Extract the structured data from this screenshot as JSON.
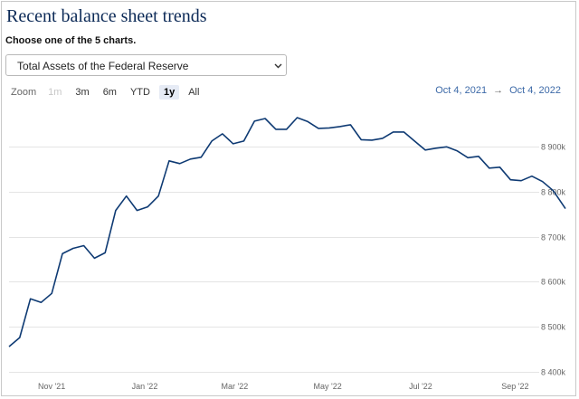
{
  "header": {
    "title": "Recent balance sheet trends",
    "subtitle": "Choose one of the 5 charts."
  },
  "selector": {
    "value": "Total Assets of the Federal Reserve"
  },
  "zoom": {
    "label": "Zoom",
    "buttons": [
      {
        "label": "1m",
        "state": "disabled"
      },
      {
        "label": "3m",
        "state": "normal"
      },
      {
        "label": "6m",
        "state": "normal"
      },
      {
        "label": "YTD",
        "state": "normal"
      },
      {
        "label": "1y",
        "state": "active"
      },
      {
        "label": "All",
        "state": "normal"
      }
    ]
  },
  "range": {
    "from": "Oct 4, 2021",
    "separator": "→",
    "to": "Oct 4, 2022"
  },
  "colors": {
    "title": "#0c2a57",
    "line": "#0e3a73",
    "range_link": "#3d6aa8"
  },
  "chart_data": {
    "type": "line",
    "x_type": "date",
    "xlim": [
      "2021-10-04",
      "2022-10-04"
    ],
    "ylim": [
      8400,
      8990
    ],
    "grid": true,
    "y_ticks": [
      {
        "value": 8400,
        "label": "8 400k"
      },
      {
        "value": 8500,
        "label": "8 500k"
      },
      {
        "value": 8600,
        "label": "8 600k"
      },
      {
        "value": 8700,
        "label": "8 700k"
      },
      {
        "value": 8800,
        "label": "8 800k"
      },
      {
        "value": 8900,
        "label": "8 900k"
      }
    ],
    "x_ticks": [
      {
        "date": "2021-11-01",
        "label": "Nov '21"
      },
      {
        "date": "2022-01-01",
        "label": "Jan '22"
      },
      {
        "date": "2022-03-01",
        "label": "Mar '22"
      },
      {
        "date": "2022-05-01",
        "label": "May '22"
      },
      {
        "date": "2022-07-01",
        "label": "Jul '22"
      },
      {
        "date": "2022-09-01",
        "label": "Sep '22"
      }
    ],
    "series": [
      {
        "points": [
          [
            "2021-10-04",
            8456
          ],
          [
            "2021-10-11",
            8476
          ],
          [
            "2021-10-18",
            8562
          ],
          [
            "2021-10-25",
            8554
          ],
          [
            "2021-11-01",
            8574
          ],
          [
            "2021-11-08",
            8662
          ],
          [
            "2021-11-15",
            8674
          ],
          [
            "2021-11-22",
            8680
          ],
          [
            "2021-11-29",
            8652
          ],
          [
            "2021-12-06",
            8664
          ],
          [
            "2021-12-13",
            8758
          ],
          [
            "2021-12-20",
            8790
          ],
          [
            "2021-12-27",
            8758
          ],
          [
            "2022-01-03",
            8766
          ],
          [
            "2022-01-10",
            8790
          ],
          [
            "2022-01-17",
            8868
          ],
          [
            "2022-01-24",
            8862
          ],
          [
            "2022-01-31",
            8872
          ],
          [
            "2022-02-07",
            8876
          ],
          [
            "2022-02-14",
            8912
          ],
          [
            "2022-02-21",
            8928
          ],
          [
            "2022-02-28",
            8906
          ],
          [
            "2022-03-07",
            8912
          ],
          [
            "2022-03-14",
            8956
          ],
          [
            "2022-03-21",
            8962
          ],
          [
            "2022-03-28",
            8938
          ],
          [
            "2022-04-04",
            8938
          ],
          [
            "2022-04-11",
            8964
          ],
          [
            "2022-04-18",
            8955
          ],
          [
            "2022-04-25",
            8940
          ],
          [
            "2022-05-02",
            8941
          ],
          [
            "2022-05-09",
            8944
          ],
          [
            "2022-05-16",
            8948
          ],
          [
            "2022-05-23",
            8915
          ],
          [
            "2022-05-30",
            8914
          ],
          [
            "2022-06-06",
            8918
          ],
          [
            "2022-06-13",
            8932
          ],
          [
            "2022-06-20",
            8932
          ],
          [
            "2022-06-27",
            8912
          ],
          [
            "2022-07-04",
            8892
          ],
          [
            "2022-07-11",
            8896
          ],
          [
            "2022-07-18",
            8899
          ],
          [
            "2022-07-25",
            8890
          ],
          [
            "2022-08-01",
            8875
          ],
          [
            "2022-08-08",
            8878
          ],
          [
            "2022-08-15",
            8852
          ],
          [
            "2022-08-22",
            8854
          ],
          [
            "2022-08-29",
            8826
          ],
          [
            "2022-09-05",
            8824
          ],
          [
            "2022-09-12",
            8834
          ],
          [
            "2022-09-19",
            8822
          ],
          [
            "2022-09-26",
            8802
          ],
          [
            "2022-10-04",
            8762
          ]
        ]
      }
    ]
  }
}
